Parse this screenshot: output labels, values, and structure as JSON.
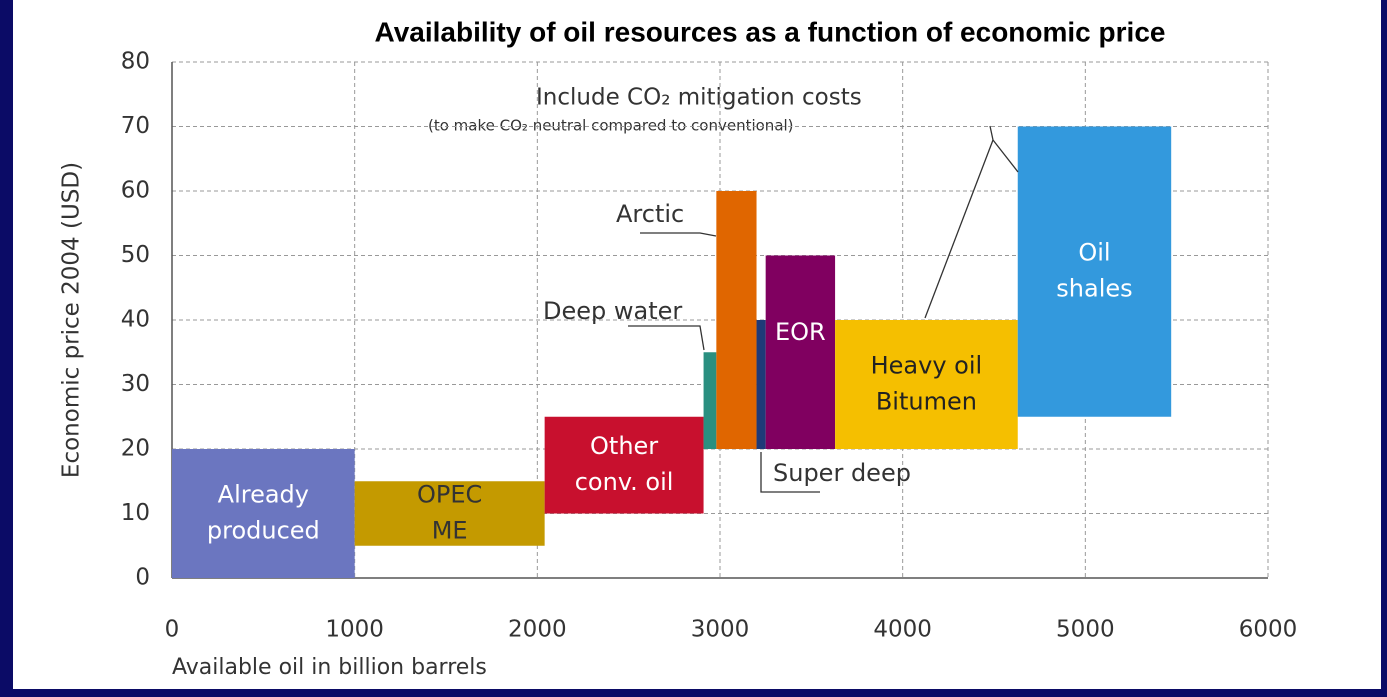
{
  "chart_data": {
    "type": "range_bar",
    "title": "Availability of oil resources as a function of economic price",
    "xlabel": "Available oil in billion barrels",
    "ylabel": "Economic price 2004 (USD)",
    "xlim": [
      0,
      6000
    ],
    "ylim": [
      0,
      80
    ],
    "xticks": [
      0,
      1000,
      2000,
      3000,
      4000,
      5000,
      6000
    ],
    "yticks": [
      0,
      10,
      20,
      30,
      40,
      50,
      60,
      70,
      80
    ],
    "grid": true,
    "annotations": [
      "Include CO₂ mitigation costs",
      "(to make CO₂ neutral compared to conventional)"
    ],
    "bars": [
      {
        "label": [
          "Already",
          "produced"
        ],
        "x": [
          0,
          1000
        ],
        "y": [
          0,
          20
        ],
        "color": "#6b76c0",
        "label_color": "#ffffff"
      },
      {
        "label": [
          "OPEC",
          "ME"
        ],
        "x": [
          1000,
          2040
        ],
        "y": [
          5,
          15
        ],
        "color": "#c49a00",
        "label_color": "#333333"
      },
      {
        "label": [
          "Other",
          "conv. oil"
        ],
        "x": [
          2040,
          2910
        ],
        "y": [
          10,
          25
        ],
        "color": "#c8102e",
        "label_color": "#ffffff"
      },
      {
        "label": [
          "Deep water"
        ],
        "x": [
          2910,
          2980
        ],
        "y": [
          20,
          35
        ],
        "color": "#2a8f80",
        "label_color": "#333333"
      },
      {
        "label": [
          "Arctic"
        ],
        "x": [
          2980,
          3200
        ],
        "y": [
          20,
          60
        ],
        "color": "#e06600",
        "label_color": "#333333"
      },
      {
        "label": [
          "Super deep"
        ],
        "x": [
          3200,
          3250
        ],
        "y": [
          20,
          40
        ],
        "color": "#1f3a78",
        "label_color": "#333333"
      },
      {
        "label": [
          "EOR"
        ],
        "x": [
          3250,
          3630
        ],
        "y": [
          20,
          50
        ],
        "color": "#800060",
        "label_color": "#ffffff"
      },
      {
        "label": [
          "Heavy oil",
          "Bitumen"
        ],
        "x": [
          3630,
          4630
        ],
        "y": [
          20,
          40
        ],
        "color": "#f5bf00",
        "label_color": "#222222"
      },
      {
        "label": [
          "Oil",
          "shales"
        ],
        "x": [
          4630,
          5470
        ],
        "y": [
          25,
          70
        ],
        "color": "#3399dd",
        "label_color": "#ffffff"
      }
    ]
  }
}
